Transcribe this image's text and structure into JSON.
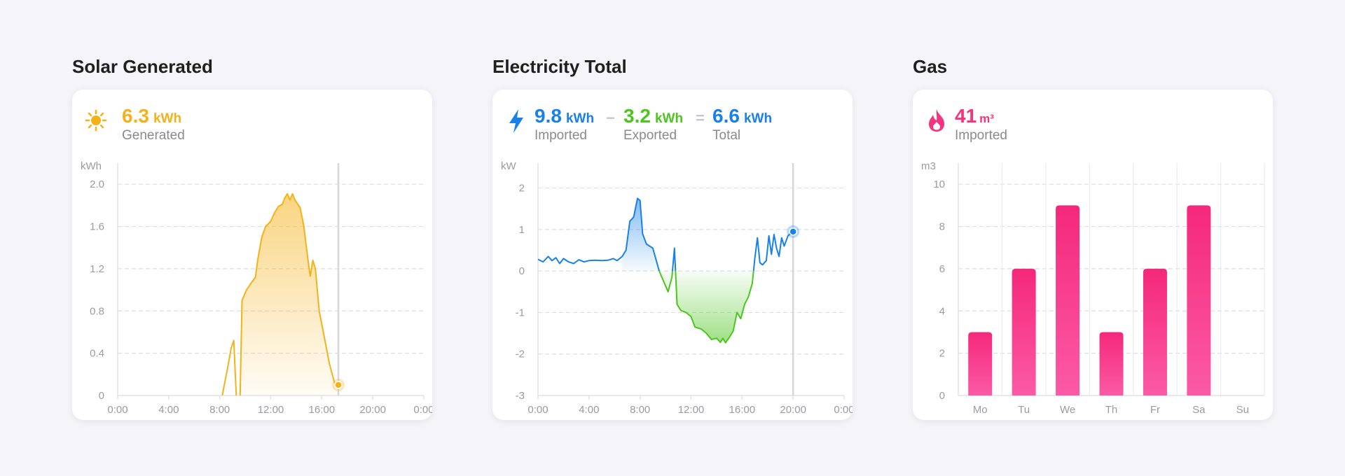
{
  "panels": [
    {
      "title": "Solar Generated"
    },
    {
      "title": "Electricity Total"
    },
    {
      "title": "Gas"
    }
  ],
  "solar": {
    "icon": "sun-icon",
    "color": "#f4b21a",
    "value": "6.3",
    "unit": "kWh",
    "label": "Generated"
  },
  "electricity": {
    "icon": "lightning-bolt-icon",
    "imported": {
      "value": "9.8",
      "unit": "kWh",
      "label": "Imported",
      "color": "#1781e8"
    },
    "minus": "−",
    "exported": {
      "value": "3.2",
      "unit": "kWh",
      "label": "Exported",
      "color": "#4cc51e"
    },
    "equals": "=",
    "total": {
      "value": "6.6",
      "unit": "kWh",
      "label": "Total",
      "color": "#1781e8"
    }
  },
  "gas": {
    "icon": "flame-icon",
    "color": "#f4347d",
    "value": "41",
    "unit": "m³",
    "label": "Imported"
  },
  "chart_data": [
    {
      "type": "area",
      "ylabel": "kWh",
      "ylim": [
        0,
        2.2
      ],
      "yticks": [
        0,
        0.4,
        0.8,
        1.2,
        1.6,
        2.0
      ],
      "ytick_labels": [
        "0",
        "0.4",
        "0.8",
        "1.2",
        "1.6",
        "2.0"
      ],
      "xlim": [
        0,
        24
      ],
      "xticks": [
        0,
        4,
        8,
        12,
        16,
        20,
        24
      ],
      "xtick_labels": [
        "0:00",
        "4:00",
        "8:00",
        "12:00",
        "16:00",
        "20:00",
        "0:00"
      ],
      "cursor_x": 17.3,
      "line_only": [
        [
          8.2,
          0
        ],
        [
          8.6,
          0.25
        ],
        [
          8.9,
          0.45
        ],
        [
          9.1,
          0.52
        ],
        [
          9.3,
          0
        ]
      ],
      "points": [
        [
          9.6,
          0
        ],
        [
          9.75,
          0.9
        ],
        [
          10.1,
          1.0
        ],
        [
          10.5,
          1.07
        ],
        [
          10.8,
          1.12
        ],
        [
          11.0,
          1.3
        ],
        [
          11.3,
          1.5
        ],
        [
          11.6,
          1.6
        ],
        [
          12.0,
          1.65
        ],
        [
          12.3,
          1.73
        ],
        [
          12.6,
          1.79
        ],
        [
          12.9,
          1.81
        ],
        [
          13.1,
          1.87
        ],
        [
          13.3,
          1.91
        ],
        [
          13.5,
          1.85
        ],
        [
          13.7,
          1.91
        ],
        [
          13.9,
          1.85
        ],
        [
          14.3,
          1.78
        ],
        [
          14.6,
          1.6
        ],
        [
          14.9,
          1.3
        ],
        [
          15.1,
          1.13
        ],
        [
          15.3,
          1.28
        ],
        [
          15.5,
          1.2
        ],
        [
          15.8,
          0.8
        ],
        [
          16.2,
          0.55
        ],
        [
          16.6,
          0.3
        ],
        [
          17.0,
          0.12
        ],
        [
          17.3,
          0.1
        ]
      ]
    },
    {
      "type": "area",
      "ylabel": "kW",
      "ylim": [
        -3,
        2.6
      ],
      "yticks": [
        -3,
        -2,
        -1,
        0,
        1,
        2
      ],
      "ytick_labels": [
        "-3",
        "-2",
        "-1",
        "0",
        "1",
        "2"
      ],
      "xlim": [
        0,
        24
      ],
      "xticks": [
        0,
        4,
        8,
        12,
        16,
        20,
        24
      ],
      "xtick_labels": [
        "0:00",
        "4:00",
        "8:00",
        "12:00",
        "16:00",
        "20:00",
        "0:00"
      ],
      "cursor_x": 20.0,
      "points": [
        [
          0.0,
          0.28
        ],
        [
          0.4,
          0.22
        ],
        [
          0.8,
          0.35
        ],
        [
          1.1,
          0.25
        ],
        [
          1.4,
          0.32
        ],
        [
          1.7,
          0.18
        ],
        [
          2.0,
          0.3
        ],
        [
          2.4,
          0.22
        ],
        [
          2.8,
          0.18
        ],
        [
          3.2,
          0.27
        ],
        [
          3.6,
          0.22
        ],
        [
          4.0,
          0.25
        ],
        [
          4.5,
          0.26
        ],
        [
          5.0,
          0.25
        ],
        [
          5.5,
          0.26
        ],
        [
          5.9,
          0.3
        ],
        [
          6.2,
          0.25
        ],
        [
          6.6,
          0.35
        ],
        [
          6.9,
          0.5
        ],
        [
          7.2,
          1.2
        ],
        [
          7.5,
          1.3
        ],
        [
          7.8,
          1.75
        ],
        [
          8.0,
          1.7
        ],
        [
          8.2,
          0.9
        ],
        [
          8.5,
          0.65
        ],
        [
          9.0,
          0.55
        ],
        [
          9.5,
          0.0
        ],
        [
          10.2,
          -0.5
        ],
        [
          10.5,
          -0.15
        ],
        [
          10.7,
          0.55
        ],
        [
          10.9,
          -0.8
        ],
        [
          11.2,
          -0.95
        ],
        [
          11.6,
          -1.0
        ],
        [
          12.0,
          -1.1
        ],
        [
          12.3,
          -1.35
        ],
        [
          12.8,
          -1.4
        ],
        [
          13.2,
          -1.5
        ],
        [
          13.6,
          -1.65
        ],
        [
          14.0,
          -1.62
        ],
        [
          14.3,
          -1.72
        ],
        [
          14.5,
          -1.62
        ],
        [
          14.7,
          -1.73
        ],
        [
          15.0,
          -1.6
        ],
        [
          15.3,
          -1.45
        ],
        [
          15.6,
          -1.0
        ],
        [
          15.9,
          -1.15
        ],
        [
          16.2,
          -0.8
        ],
        [
          16.5,
          -0.62
        ],
        [
          16.8,
          -0.3
        ],
        [
          17.0,
          0.3
        ],
        [
          17.2,
          0.8
        ],
        [
          17.4,
          0.2
        ],
        [
          17.6,
          0.15
        ],
        [
          17.9,
          0.25
        ],
        [
          18.1,
          0.85
        ],
        [
          18.3,
          0.4
        ],
        [
          18.5,
          0.88
        ],
        [
          18.7,
          0.55
        ],
        [
          18.9,
          0.35
        ],
        [
          19.1,
          0.8
        ],
        [
          19.3,
          0.6
        ],
        [
          19.6,
          0.85
        ],
        [
          20.0,
          0.95
        ]
      ]
    },
    {
      "type": "bar",
      "ylabel": "m3",
      "ylim": [
        0,
        11
      ],
      "yticks": [
        0,
        2,
        4,
        6,
        8,
        10
      ],
      "ytick_labels": [
        "0",
        "2",
        "4",
        "6",
        "8",
        "10"
      ],
      "categories": [
        "Mo",
        "Tu",
        "We",
        "Th",
        "Fr",
        "Sa",
        "Su"
      ],
      "values": [
        3,
        6,
        9,
        3,
        6,
        9,
        0
      ]
    }
  ]
}
